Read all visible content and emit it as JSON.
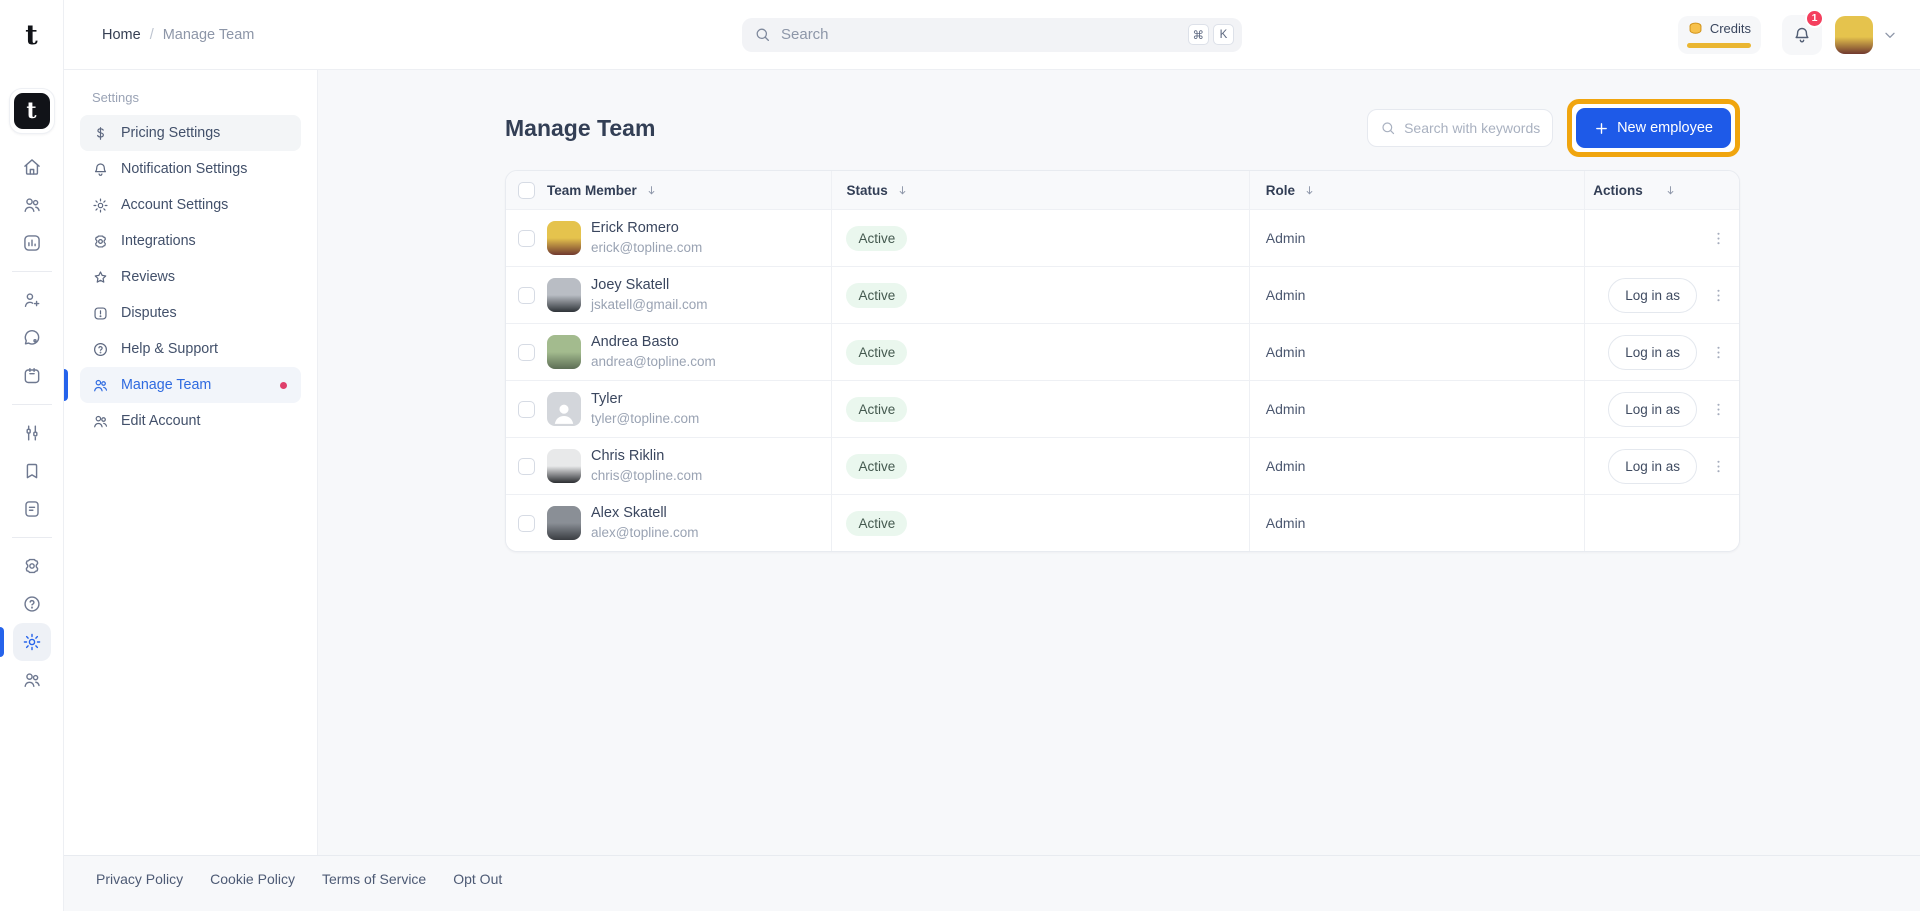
{
  "brand": {
    "letter": "t"
  },
  "rail": {
    "logo_letter": "t",
    "items": [
      {
        "type": "icon",
        "name": "home-icon",
        "icon": "home"
      },
      {
        "type": "icon",
        "name": "members-icon",
        "icon": "users"
      },
      {
        "type": "icon",
        "name": "analytics-icon",
        "icon": "analytics"
      },
      {
        "type": "divider"
      },
      {
        "type": "icon",
        "name": "add-contact-icon",
        "icon": "user-plus"
      },
      {
        "type": "icon",
        "name": "messages-icon",
        "icon": "chat"
      },
      {
        "type": "icon",
        "name": "calendar-icon",
        "icon": "calendar"
      },
      {
        "type": "divider"
      },
      {
        "type": "icon",
        "name": "controls-icon",
        "icon": "sliders"
      },
      {
        "type": "icon",
        "name": "bookmarks-icon",
        "icon": "bookmark"
      },
      {
        "type": "icon",
        "name": "documents-icon",
        "icon": "document"
      },
      {
        "type": "divider"
      },
      {
        "type": "icon",
        "name": "integrations-icon",
        "icon": "integrations"
      },
      {
        "type": "icon",
        "name": "help-icon",
        "icon": "help"
      },
      {
        "type": "icon",
        "name": "settings-icon",
        "icon": "gear",
        "active": true
      },
      {
        "type": "icon",
        "name": "team-icon",
        "icon": "users"
      }
    ]
  },
  "topbar": {
    "breadcrumb": {
      "home": "Home",
      "separator": "/",
      "current": "Manage Team"
    },
    "search": {
      "placeholder": "Search",
      "shortcut_keys": [
        "⌘",
        "K"
      ]
    },
    "credits": {
      "label": "Credits",
      "bar_color": "#eab632"
    },
    "notifications": {
      "badge": "1"
    },
    "avatar": {
      "c1": "#e5c34d",
      "c2": "#70392f"
    }
  },
  "sidebar": {
    "section_title": "Settings",
    "items": [
      {
        "label": "Pricing Settings",
        "icon": "dollar",
        "name": "sidebar-item-pricing-settings",
        "hovered": true
      },
      {
        "label": "Notification Settings",
        "icon": "bell",
        "name": "sidebar-item-notification-settings"
      },
      {
        "label": "Account Settings",
        "icon": "gear",
        "name": "sidebar-item-account-settings"
      },
      {
        "label": "Integrations",
        "icon": "integrations",
        "name": "sidebar-item-integrations"
      },
      {
        "label": "Reviews",
        "icon": "star",
        "name": "sidebar-item-reviews"
      },
      {
        "label": "Disputes",
        "icon": "alert",
        "name": "sidebar-item-disputes"
      },
      {
        "label": "Help & Support",
        "icon": "help",
        "name": "sidebar-item-help-support"
      },
      {
        "label": "Manage Team",
        "icon": "users",
        "name": "sidebar-item-manage-team",
        "active": true,
        "dot": true
      },
      {
        "label": "Edit Account",
        "icon": "users",
        "name": "sidebar-item-edit-account"
      }
    ]
  },
  "main": {
    "title": "Manage Team",
    "toolbar": {
      "search_placeholder": "Search with keywords",
      "new_employee_label": "New employee",
      "highlight_color": "#f0a50e",
      "button_color": "#1e5ae8"
    },
    "table": {
      "columns": [
        "Team Member",
        "Status",
        "Role",
        "Actions"
      ],
      "login_label": "Log in as",
      "rows": [
        {
          "name": "Erick Romero",
          "email": "erick@topline.com",
          "status": "Active",
          "role": "Admin",
          "log_in_as": false,
          "menu": true,
          "avatar": {
            "type": "photo",
            "c1": "#e5c34d",
            "c2": "#70392f"
          }
        },
        {
          "name": "Joey Skatell",
          "email": "jskatell@gmail.com",
          "status": "Active",
          "role": "Admin",
          "log_in_as": true,
          "menu": true,
          "avatar": {
            "type": "photo",
            "c1": "#b9bdc4",
            "c2": "#2e3338"
          }
        },
        {
          "name": "Andrea Basto",
          "email": "andrea@topline.com",
          "status": "Active",
          "role": "Admin",
          "log_in_as": true,
          "menu": true,
          "avatar": {
            "type": "photo",
            "c1": "#a3bb8e",
            "c2": "#5d6e55"
          }
        },
        {
          "name": "Tyler",
          "email": "tyler@topline.com",
          "status": "Active",
          "role": "Admin",
          "log_in_as": true,
          "menu": true,
          "avatar": {
            "type": "placeholder"
          }
        },
        {
          "name": "Chris Riklin",
          "email": "chris@topline.com",
          "status": "Active",
          "role": "Admin",
          "log_in_as": true,
          "menu": true,
          "avatar": {
            "type": "photo",
            "c1": "#e8e9ea",
            "c2": "#2b2d31"
          }
        },
        {
          "name": "Alex Skatell",
          "email": "alex@topline.com",
          "status": "Active",
          "role": "Admin",
          "log_in_as": false,
          "menu": false,
          "avatar": {
            "type": "photo",
            "c1": "#8a8f96",
            "c2": "#3a3d42"
          }
        }
      ]
    }
  },
  "footer": {
    "links": [
      "Privacy Policy",
      "Cookie Policy",
      "Terms of Service",
      "Opt Out"
    ]
  },
  "colors": {
    "primary": "#2563eb",
    "highlight": "#f0a50e",
    "badge_bg": "#eaf7ee",
    "badge_text": "#44594f",
    "danger": "#f43f5e",
    "gold": "#eab632"
  }
}
